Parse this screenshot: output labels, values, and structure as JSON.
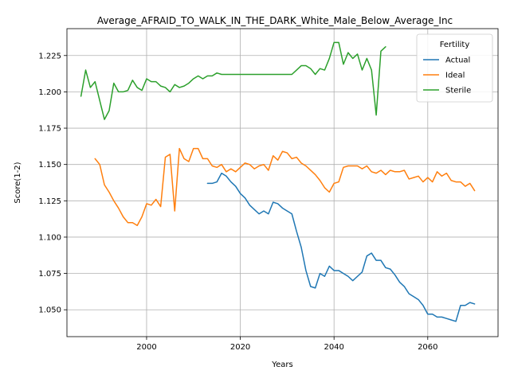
{
  "chart_data": {
    "type": "line",
    "title": "Average_AFRAID_TO_WALK_IN_THE_DARK_White_Male_Below_Average_Inc",
    "xlabel": "Years",
    "ylabel": "Score(1-2)",
    "xlim": [
      1983,
      2075
    ],
    "ylim": [
      1.0315,
      1.2435
    ],
    "xticks": [
      2000,
      2020,
      2040,
      2060
    ],
    "yticks": [
      1.05,
      1.075,
      1.1,
      1.125,
      1.15,
      1.175,
      1.2,
      1.225
    ],
    "grid": true,
    "legend": {
      "title": "Fertility",
      "placement": "top-right"
    },
    "series": [
      {
        "name": "Actual",
        "color": "#1f77b4",
        "x": [
          2013,
          2014,
          2015,
          2016,
          2017,
          2018,
          2019,
          2020,
          2021,
          2022,
          2023,
          2024,
          2025,
          2026,
          2027,
          2028,
          2029,
          2030,
          2031,
          2032,
          2033,
          2034,
          2035,
          2036,
          2037,
          2038,
          2039,
          2040,
          2041,
          2042,
          2043,
          2044,
          2045,
          2046,
          2047,
          2048,
          2049,
          2050,
          2051,
          2052,
          2053,
          2054,
          2055,
          2056,
          2057,
          2058,
          2059,
          2060,
          2061,
          2062,
          2063,
          2064,
          2065,
          2066,
          2067,
          2068,
          2069,
          2070
        ],
        "values": [
          1.137,
          1.137,
          1.138,
          1.144,
          1.142,
          1.138,
          1.135,
          1.13,
          1.127,
          1.122,
          1.119,
          1.116,
          1.118,
          1.116,
          1.124,
          1.123,
          1.12,
          1.118,
          1.116,
          1.104,
          1.093,
          1.077,
          1.066,
          1.065,
          1.075,
          1.073,
          1.08,
          1.077,
          1.077,
          1.075,
          1.073,
          1.07,
          1.073,
          1.076,
          1.087,
          1.089,
          1.084,
          1.084,
          1.079,
          1.078,
          1.074,
          1.069,
          1.066,
          1.061,
          1.059,
          1.057,
          1.053,
          1.047,
          1.047,
          1.045,
          1.045,
          1.044,
          1.043,
          1.042,
          1.053,
          1.053,
          1.055,
          1.054
        ]
      },
      {
        "name": "Ideal",
        "color": "#ff7f0e",
        "x": [
          1989,
          1990,
          1991,
          1992,
          1993,
          1994,
          1995,
          1996,
          1997,
          1998,
          1999,
          2000,
          2001,
          2002,
          2003,
          2004,
          2005,
          2006,
          2007,
          2008,
          2009,
          2010,
          2011,
          2012,
          2013,
          2014,
          2015,
          2016,
          2017,
          2018,
          2019,
          2020,
          2021,
          2022,
          2023,
          2024,
          2025,
          2026,
          2027,
          2028,
          2029,
          2030,
          2031,
          2032,
          2033,
          2034,
          2035,
          2036,
          2037,
          2038,
          2039,
          2040,
          2041,
          2042,
          2043,
          2044,
          2045,
          2046,
          2047,
          2048,
          2049,
          2050,
          2051,
          2052,
          2053,
          2054,
          2055,
          2056,
          2057,
          2058,
          2059,
          2060,
          2061,
          2062,
          2063,
          2064,
          2065,
          2066,
          2067,
          2068,
          2069,
          2070
        ],
        "values": [
          1.154,
          1.15,
          1.136,
          1.131,
          1.125,
          1.12,
          1.114,
          1.11,
          1.11,
          1.108,
          1.114,
          1.123,
          1.122,
          1.126,
          1.121,
          1.155,
          1.157,
          1.118,
          1.161,
          1.154,
          1.152,
          1.161,
          1.161,
          1.154,
          1.154,
          1.149,
          1.148,
          1.15,
          1.145,
          1.147,
          1.145,
          1.148,
          1.151,
          1.15,
          1.147,
          1.149,
          1.15,
          1.146,
          1.156,
          1.153,
          1.159,
          1.158,
          1.154,
          1.155,
          1.151,
          1.149,
          1.146,
          1.143,
          1.139,
          1.134,
          1.131,
          1.137,
          1.138,
          1.148,
          1.149,
          1.149,
          1.149,
          1.147,
          1.149,
          1.145,
          1.144,
          1.146,
          1.143,
          1.146,
          1.145,
          1.145,
          1.146,
          1.14,
          1.141,
          1.142,
          1.138,
          1.141,
          1.138,
          1.145,
          1.142,
          1.144,
          1.139,
          1.138,
          1.138,
          1.135,
          1.137,
          1.132
        ]
      },
      {
        "name": "Sterile",
        "color": "#2ca02c",
        "x": [
          1986,
          1987,
          1988,
          1989,
          1990,
          1991,
          1992,
          1993,
          1994,
          1995,
          1996,
          1997,
          1998,
          1999,
          2000,
          2001,
          2002,
          2003,
          2004,
          2005,
          2006,
          2007,
          2008,
          2009,
          2010,
          2011,
          2012,
          2013,
          2014,
          2015,
          2016,
          2017,
          2018,
          2019,
          2020,
          2021,
          2022,
          2023,
          2024,
          2025,
          2026,
          2027,
          2028,
          2029,
          2030,
          2031,
          2032,
          2033,
          2034,
          2035,
          2036,
          2037,
          2038,
          2039,
          2040,
          2041,
          2042,
          2043,
          2044,
          2045,
          2046,
          2047,
          2048,
          2049,
          2050,
          2051
        ],
        "values": [
          1.197,
          1.215,
          1.203,
          1.207,
          1.194,
          1.181,
          1.187,
          1.206,
          1.2,
          1.2,
          1.201,
          1.208,
          1.203,
          1.201,
          1.209,
          1.207,
          1.207,
          1.204,
          1.203,
          1.2,
          1.205,
          1.203,
          1.204,
          1.206,
          1.209,
          1.211,
          1.209,
          1.211,
          1.211,
          1.213,
          1.212,
          1.212,
          1.212,
          1.212,
          1.212,
          1.212,
          1.212,
          1.212,
          1.212,
          1.212,
          1.212,
          1.212,
          1.212,
          1.212,
          1.212,
          1.212,
          1.215,
          1.218,
          1.218,
          1.216,
          1.212,
          1.216,
          1.215,
          1.223,
          1.234,
          1.234,
          1.219,
          1.227,
          1.223,
          1.226,
          1.215,
          1.223,
          1.215,
          1.184,
          1.228,
          1.231
        ]
      }
    ]
  }
}
